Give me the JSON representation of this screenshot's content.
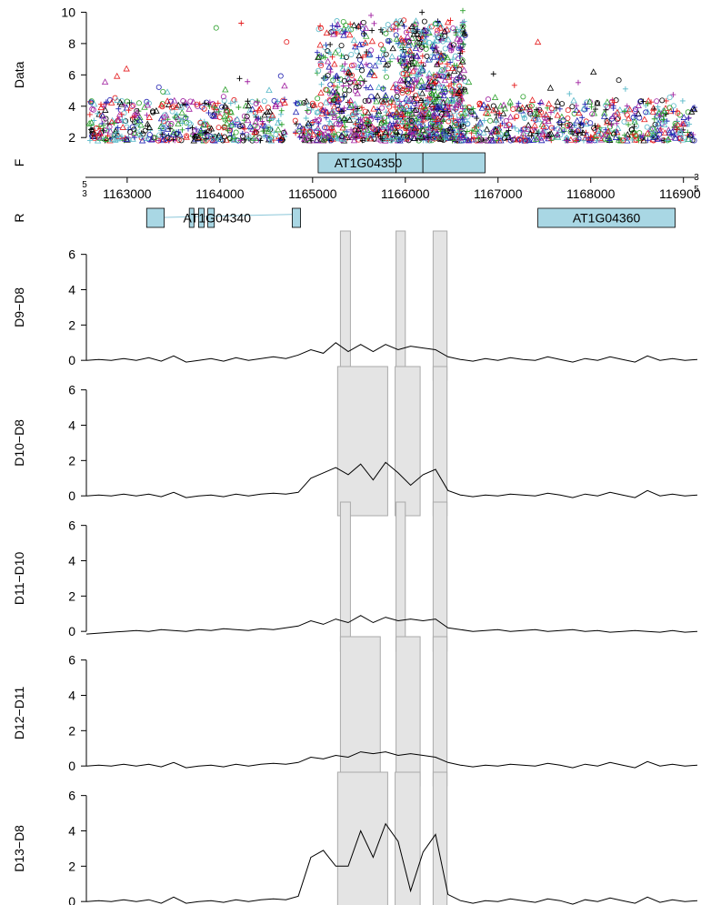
{
  "chart_data": [
    {
      "type": "scatter",
      "ylabel": "Data",
      "ylim": [
        1.2,
        10.2
      ],
      "yticks": [
        2,
        4,
        6,
        8,
        10
      ],
      "xlim": [
        1162560,
        1169150
      ],
      "series_colors": [
        "#000000",
        "#e41a1c",
        "#2ca02c",
        "#1f1fb0",
        "#57b8c8",
        "#a020a0"
      ],
      "markers": [
        "triangle",
        "circle",
        "plus"
      ],
      "dense_signal_regions": [
        [
          1165050,
          1165900
        ],
        [
          1165900,
          1166300
        ],
        [
          1166300,
          1166650
        ]
      ],
      "notable_points": [
        {
          "x": 1163960,
          "y": 9.0
        },
        {
          "x": 1164230,
          "y": 9.3
        },
        {
          "x": 1164720,
          "y": 8.1
        },
        {
          "x": 1165630,
          "y": 9.8
        },
        {
          "x": 1166180,
          "y": 10.0
        },
        {
          "x": 1166620,
          "y": 10.1
        },
        {
          "x": 1167430,
          "y": 8.1
        }
      ]
    },
    {
      "type": "gene_track",
      "strand_labels": [
        "F",
        "R"
      ],
      "axis_ticks": [
        1163000,
        1164000,
        1165000,
        1166000,
        1167000,
        1168000,
        1169000
      ],
      "axis_end_labels": [
        "5",
        "3",
        "3",
        "5"
      ],
      "genes": [
        {
          "name": "AT1G04350",
          "strand": "F",
          "exons": [
            [
              1165060,
              1165900
            ],
            [
              1165900,
              1166190
            ],
            [
              1166190,
              1166860
            ]
          ]
        },
        {
          "name": "AT1G04340",
          "strand": "R",
          "exons": [
            [
              1163210,
              1163400
            ],
            [
              1163670,
              1163720
            ],
            [
              1163770,
              1163830
            ],
            [
              1163870,
              1163940
            ],
            [
              1164780,
              1164870
            ]
          ]
        },
        {
          "name": "AT1G04360",
          "strand": "R",
          "exons": [
            [
              1167430,
              1168910
            ]
          ]
        }
      ]
    },
    {
      "type": "line",
      "ylim": [
        -0.3,
        6.6
      ],
      "yticks": [
        0,
        2,
        4,
        6
      ],
      "panels": [
        {
          "ylabel": "D9−D8",
          "regions": [
            [
              1165300,
              1165360,
              0.8
            ],
            [
              1165900,
              1166000,
              0.9
            ],
            [
              1166300,
              1166450,
              0.8
            ]
          ],
          "values": [
            0,
            0.05,
            0,
            0.1,
            0,
            0.15,
            -0.05,
            0.25,
            -0.1,
            0,
            0.1,
            -0.05,
            0.15,
            0,
            0.1,
            0.2,
            0.1,
            0.3,
            0.6,
            0.4,
            1.0,
            0.5,
            0.9,
            0.5,
            0.9,
            0.6,
            0.8,
            0.7,
            0.6,
            0.2,
            0.05,
            -0.05,
            0.1,
            0,
            0.15,
            0.05,
            0,
            0.2,
            0.05,
            -0.1,
            0.1,
            0,
            0.2,
            0.05,
            -0.1,
            0.25,
            0,
            0.1,
            0,
            0.05
          ]
        },
        {
          "ylabel": "D10−D8",
          "regions": [
            [
              1165270,
              1165810,
              1.6
            ],
            [
              1165890,
              1166160,
              1.8
            ],
            [
              1166300,
              1166450,
              1.5
            ]
          ],
          "values": [
            0,
            0.05,
            0,
            0.1,
            0,
            0.1,
            -0.05,
            0.2,
            -0.1,
            0,
            0.05,
            -0.05,
            0.1,
            0,
            0.1,
            0.15,
            0.1,
            0.2,
            1.0,
            1.3,
            1.6,
            1.2,
            1.8,
            0.9,
            1.9,
            1.3,
            0.6,
            1.2,
            1.5,
            0.3,
            0.05,
            -0.05,
            0.05,
            0,
            0.1,
            0.05,
            0,
            0.15,
            0.05,
            -0.1,
            0.1,
            0,
            0.2,
            0.05,
            -0.1,
            0.3,
            0,
            0.1,
            0,
            0.05
          ]
        },
        {
          "ylabel": "D11−D10",
          "regions": [
            [
              1165300,
              1165360,
              0.7
            ],
            [
              1165900,
              1166000,
              0.8
            ],
            [
              1166300,
              1166450,
              0.7
            ]
          ],
          "values": [
            -0.15,
            -0.1,
            -0.05,
            0,
            0.05,
            0,
            0.1,
            0.05,
            0,
            0.1,
            0.05,
            0.15,
            0.1,
            0.05,
            0.15,
            0.1,
            0.2,
            0.3,
            0.6,
            0.4,
            0.7,
            0.5,
            0.9,
            0.5,
            0.8,
            0.6,
            0.7,
            0.6,
            0.7,
            0.2,
            0.1,
            0,
            0.05,
            0.1,
            0,
            0.05,
            0.1,
            0,
            0.05,
            0.1,
            0,
            0.05,
            -0.05,
            0,
            0.05,
            0,
            -0.05,
            0.05,
            -0.05,
            0
          ]
        },
        {
          "ylabel": "D12−D11",
          "regions": [
            [
              1165300,
              1165730,
              0.6
            ],
            [
              1165900,
              1166160,
              0.8
            ],
            [
              1166300,
              1166450,
              0.7
            ]
          ],
          "values": [
            0,
            0.05,
            0,
            0.1,
            0,
            0.1,
            -0.05,
            0.2,
            -0.1,
            0,
            0.05,
            -0.05,
            0.1,
            0,
            0.1,
            0.15,
            0.1,
            0.2,
            0.5,
            0.4,
            0.6,
            0.5,
            0.8,
            0.7,
            0.8,
            0.6,
            0.7,
            0.6,
            0.5,
            0.2,
            0.05,
            -0.05,
            0.05,
            0,
            0.1,
            0.05,
            0,
            0.15,
            0.05,
            -0.1,
            0.1,
            0,
            0.2,
            0.05,
            -0.1,
            0.25,
            0,
            0.1,
            0,
            0.05
          ]
        },
        {
          "ylabel": "D13−D8",
          "regions": [
            [
              1165270,
              1165810,
              2.5
            ],
            [
              1165890,
              1166160,
              3.3
            ],
            [
              1166300,
              1166450,
              3.0
            ]
          ],
          "values": [
            0,
            0.05,
            0,
            0.1,
            0,
            0.1,
            -0.1,
            0.25,
            -0.1,
            0,
            0.05,
            -0.05,
            0.1,
            0,
            0.1,
            0.15,
            0.1,
            0.3,
            2.5,
            2.9,
            2.0,
            2.0,
            4.0,
            2.5,
            4.4,
            3.4,
            0.6,
            2.8,
            3.8,
            0.4,
            0.05,
            -0.1,
            0.05,
            0,
            0.15,
            0.05,
            -0.05,
            0.15,
            0.05,
            -0.15,
            0.1,
            0,
            0.2,
            0.05,
            -0.1,
            0.25,
            -0.05,
            0.1,
            0,
            0.05
          ]
        }
      ]
    }
  ]
}
